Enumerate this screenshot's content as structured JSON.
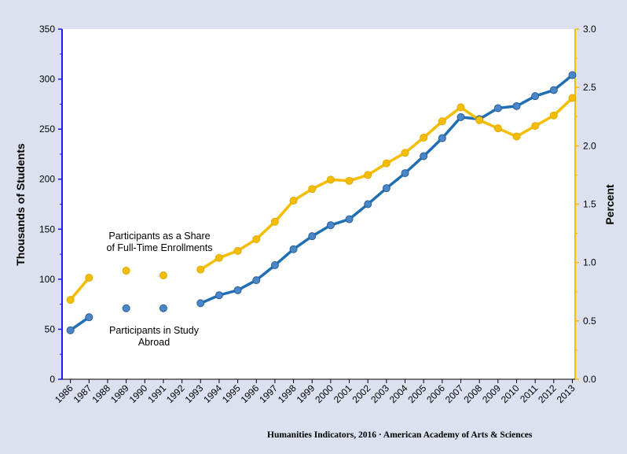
{
  "chart_data": {
    "type": "line",
    "title": "",
    "categories": [
      "1986",
      "1987",
      "1988",
      "1989",
      "1990",
      "1991",
      "1992",
      "1993",
      "1994",
      "1995",
      "1996",
      "1997",
      "1998",
      "1999",
      "2000",
      "2001",
      "2002",
      "2003",
      "2004",
      "2005",
      "2006",
      "2007",
      "2008",
      "2009",
      "2010",
      "2011",
      "2012",
      "2013"
    ],
    "series": [
      {
        "name": "Participants in Study Abroad",
        "axis": "left",
        "color": "#1f6fb5",
        "values": [
          49,
          62,
          null,
          71,
          null,
          71,
          null,
          76,
          84,
          89,
          99,
          114,
          130,
          143,
          154,
          160,
          175,
          191,
          206,
          223,
          241,
          262,
          260,
          271,
          273,
          283,
          289,
          304
        ]
      },
      {
        "name": "Participants as a Share of Full-Time Enrollments",
        "axis": "right",
        "color": "#f5bd00",
        "values": [
          0.68,
          0.87,
          null,
          0.93,
          null,
          0.89,
          null,
          0.94,
          1.04,
          1.1,
          1.2,
          1.35,
          1.53,
          1.63,
          1.71,
          1.7,
          1.75,
          1.85,
          1.94,
          2.07,
          2.21,
          2.33,
          2.22,
          2.15,
          2.08,
          2.17,
          2.26,
          2.41
        ]
      }
    ],
    "ylabel": "Thousands of Students",
    "y2label": "Percent",
    "ylim": [
      0,
      350
    ],
    "y2lim": [
      0,
      3.0
    ],
    "yticks": [
      "0",
      "50",
      "100",
      "150",
      "200",
      "250",
      "300",
      "350"
    ],
    "y2ticks": [
      "0.0",
      "0.5",
      "1.0",
      "1.5",
      "2.0",
      "2.5",
      "3.0"
    ],
    "annotations": {
      "share_line1": "Participants as a Share",
      "share_line2": "of Full-Time Enrollments",
      "abroad_line1": "Participants in Study",
      "abroad_line2": "Abroad"
    },
    "grid": false,
    "legend": "none"
  },
  "source_note": "Humanities Indicators, 2016 · American Academy of Arts & Sciences",
  "colors": {
    "background": "#dde0ef",
    "plot_background": "#ffffff",
    "left_axis": "#1a1aff",
    "right_axis": "#f5bd00"
  }
}
